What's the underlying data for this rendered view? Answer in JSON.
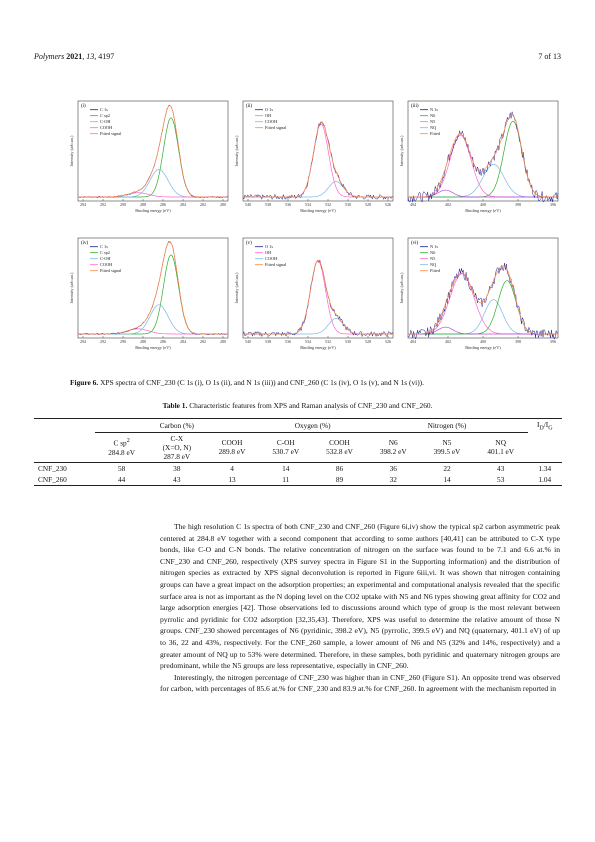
{
  "header": {
    "journal": "Polymers",
    "year": "2021",
    "volume": "13",
    "article": "4197",
    "page": "7 of 13"
  },
  "colors": {
    "c1s": "#1a1a8c",
    "sp2": "#2bb02b",
    "coh": "#7bb8e8",
    "cooh": "#ff66cc",
    "fitted": "#ff8844",
    "nq": "#b84bd8"
  },
  "panels": [
    {
      "id": "(i)",
      "xlabel": "Binding energy (eV)",
      "ylabel": "Intensity (arb.un.)",
      "ticks": [
        "294",
        "292",
        "290",
        "288",
        "286",
        "284",
        "282",
        "280"
      ],
      "legend": [
        "C 1s",
        "C sp2",
        "C-OH",
        "COOH",
        "Fitted signal"
      ]
    },
    {
      "id": "(ii)",
      "xlabel": "Binding energy (eV)",
      "ylabel": "Intensity (arb.un.)",
      "ticks": [
        "540",
        "538",
        "536",
        "534",
        "532",
        "530",
        "528",
        "526"
      ],
      "legend": [
        "O 1s",
        "OH",
        "COOH",
        "Fitted signal"
      ]
    },
    {
      "id": "(iii)",
      "xlabel": "Binding energy (eV)",
      "ylabel": "Intensity (arb.un.)",
      "ticks": [
        "404",
        "402",
        "400",
        "398",
        "396"
      ],
      "legend": [
        "N 1s",
        "N6",
        "N5",
        "NQ",
        "Fitted"
      ]
    },
    {
      "id": "(iv)",
      "xlabel": "Binding energy (eV)",
      "ylabel": "Intensity (arb.un.)",
      "ticks": [
        "294",
        "292",
        "290",
        "288",
        "286",
        "284",
        "282",
        "280"
      ],
      "legend": [
        "C 1s",
        "C sp2",
        "C-OH",
        "COOH",
        "Fitted signal"
      ]
    },
    {
      "id": "(v)",
      "xlabel": "Binding energy (eV)",
      "ylabel": "Intensity (arb.un.)",
      "ticks": [
        "540",
        "538",
        "536",
        "534",
        "532",
        "530",
        "528",
        "526"
      ],
      "legend": [
        "O 1s",
        "OH",
        "COOH",
        "Fitted signal"
      ]
    },
    {
      "id": "(vi)",
      "xlabel": "Binding energy (eV)",
      "ylabel": "Intensity (arb.un.)",
      "ticks": [
        "404",
        "402",
        "400",
        "398",
        "396"
      ],
      "legend": [
        "N 1s",
        "N6",
        "N5",
        "NQ",
        "Fitted"
      ]
    }
  ],
  "figure_caption": {
    "label": "Figure 6.",
    "text": "XPS spectra of CNF_230 (C 1s (i), O 1s (ii), and N 1s (iii)) and CNF_260 (C 1s (iv), O 1s (v), and N 1s (vi))."
  },
  "table": {
    "caption_label": "Table 1.",
    "caption_text": "Characteristic features from XPS and Raman analysis of CNF_230 and CNF_260.",
    "groups": [
      "Carbon (%)",
      "Oxygen (%)",
      "Nitrogen (%)",
      "ID/IG"
    ],
    "cols": [
      {
        "name": "C sp2",
        "energy": "284.8 eV"
      },
      {
        "name": "C-X (X=O, N)",
        "energy": "287.8 eV"
      },
      {
        "name": "COOH",
        "energy": "289.8 eV"
      },
      {
        "name": "C-OH",
        "energy": "530.7 eV"
      },
      {
        "name": "COOH",
        "energy": "532.8 eV"
      },
      {
        "name": "N6",
        "energy": "398.2 eV"
      },
      {
        "name": "N5",
        "energy": "399.5 eV"
      },
      {
        "name": "NQ",
        "energy": "401.1 eV"
      }
    ],
    "rows": [
      {
        "label": "CNF_230",
        "values": [
          "58",
          "38",
          "4",
          "14",
          "86",
          "36",
          "22",
          "43",
          "1.34"
        ]
      },
      {
        "label": "CNF_260",
        "values": [
          "44",
          "43",
          "13",
          "11",
          "89",
          "32",
          "14",
          "53",
          "1.04"
        ]
      }
    ]
  },
  "body": {
    "p1": "The high resolution C 1s spectra of both CNF_230 and CNF_260 (Figure 6i,iv) show the typical sp2 carbon asymmetric peak centered at 284.8 eV together with a second component that according to some authors [40,41] can be attributed to C-X type bonds, like C-O and C-N bonds. The relative concentration of nitrogen on the surface was found to be 7.1 and 6.6 at.% in CNF_230 and CNF_260, respectively (XPS survey spectra in Figure S1 in the Supporting information) and the distribution of nitrogen species as extracted by XPS signal deconvolution is reported in Figure 6iii,vi. It was shown that nitrogen containing groups can have a great impact on the adsorption properties; an experimental and computational analysis revealed that the specific surface area is not as important as the N doping level on the CO2 uptake with N5 and N6 types showing great affinity for CO2 and large adsorption energies [42]. Those observations led to discussions around which type of group is the most relevant between pyrrolic and pyridinic for CO2 adsorption [32,35,43]. Therefore, XPS was useful to determine the relative amount of those N groups. CNF_230 showed percentages of N6 (pyridinic, 398.2 eV), N5 (pyrrolic, 399.5 eV) and NQ (quaternary, 401.1 eV) of up to 36, 22 and 43%, respectively. For the CNF_260 sample, a lower amount of N6 and N5 (32% and 14%, respectively) and a greater amount of NQ up to 53% were determined. Therefore, in these samples, both pyridinic and quaternary nitrogen groups are predominant, while the N5 groups are less representative, especially in CNF_260.",
    "p2": "Interestingly, the nitrogen percentage of CNF_230 was higher than in CNF_260 (Figure S1). An opposite trend was observed for carbon, with percentages of 85.6 at.% for CNF_230 and 83.9 at.% for CNF_260. In agreement with the mechanism reported in"
  }
}
